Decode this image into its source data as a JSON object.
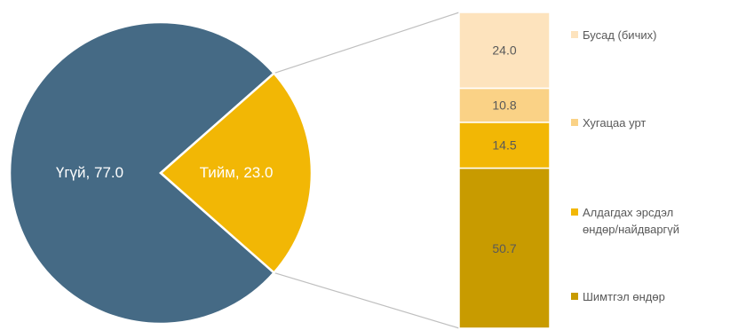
{
  "chart_data": {
    "type": "bar-of-pie",
    "pie": {
      "slices": [
        {
          "label": "Үгүй",
          "value": 77.0,
          "color": "#456a85"
        },
        {
          "label": "Тийм",
          "value": 23.0,
          "color": "#f2b705"
        }
      ]
    },
    "bar": {
      "breakdown_of": "Тийм",
      "segments": [
        {
          "label": "Шимтгэл өндөр",
          "value": 50.7,
          "color": "#c89b00"
        },
        {
          "label": "Алдагдах эрсдэл өндөр/найдваргүй",
          "value": 14.5,
          "color": "#f2b705"
        },
        {
          "label": "Хугацаа урт",
          "value": 10.8,
          "color": "#fad286"
        },
        {
          "label": "Бусад (бичих)",
          "value": 24.0,
          "color": "#fde3bd"
        }
      ]
    },
    "legend": {
      "position": "right",
      "entries": [
        {
          "lines": [
            "Бусад (бичих)"
          ],
          "color": "#fde3bd"
        },
        {
          "lines": [
            "Хугацаа урт"
          ],
          "color": "#fad286"
        },
        {
          "lines": [
            "Алдагдах эрсдэл",
            "өндөр/найдваргүй"
          ],
          "color": "#f2b705"
        },
        {
          "lines": [
            "Шимтгэл өндөр"
          ],
          "color": "#c89b00"
        }
      ]
    }
  }
}
